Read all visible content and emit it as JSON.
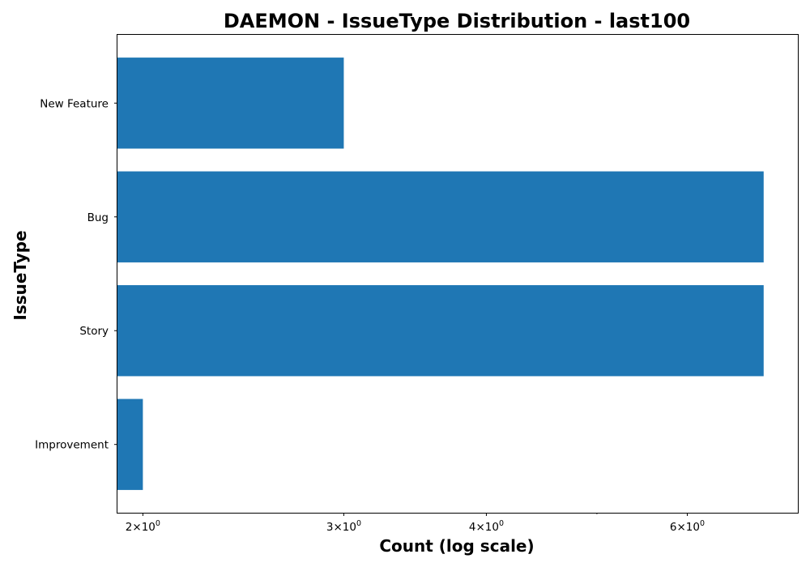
{
  "chart_data": {
    "type": "bar",
    "orientation": "horizontal",
    "title": "DAEMON - IssueType Distribution - last100",
    "xlabel": "Count (log scale)",
    "ylabel": "IssueType",
    "xscale": "log",
    "xlim": [
      1.9,
      7.5
    ],
    "categories": [
      "New Feature",
      "Bug",
      "Story",
      "Improvement"
    ],
    "values": [
      3,
      7,
      7,
      2
    ],
    "bar_color": "#1f77b4",
    "x_major_ticks": [
      {
        "value": 2,
        "base": "2",
        "exp": "0"
      },
      {
        "value": 3,
        "base": "3",
        "exp": "0"
      },
      {
        "value": 4,
        "base": "4",
        "exp": "0"
      },
      {
        "value": 6,
        "base": "6",
        "exp": "0"
      }
    ],
    "x_minor_ticks": [
      5
    ],
    "times_symbol": "×",
    "tick_exp_base": "10"
  }
}
